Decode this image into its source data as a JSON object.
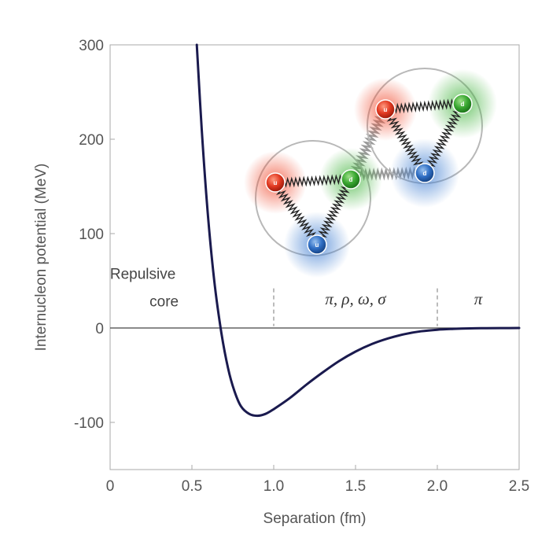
{
  "chart_data": {
    "type": "line",
    "xlabel": "Separation (fm)",
    "ylabel": "Internucleon potential (MeV)",
    "xlim": [
      0,
      2.5
    ],
    "ylim": [
      -150,
      300
    ],
    "x_ticks": [
      0,
      0.5,
      1.0,
      1.5,
      2.0,
      2.5
    ],
    "x_tick_labels": [
      "0",
      "0.5",
      "1.0",
      "1.5",
      "2.0",
      "2.5"
    ],
    "y_ticks": [
      -100,
      0,
      100,
      200,
      300
    ],
    "y_tick_labels": [
      "-100",
      "0",
      "100",
      "200",
      "300"
    ],
    "grid": false,
    "series": [
      {
        "color": "#1a1a4e",
        "x": [
          0.53,
          0.56,
          0.6,
          0.64,
          0.68,
          0.72,
          0.76,
          0.8,
          0.85,
          0.9,
          0.95,
          1.0,
          1.1,
          1.2,
          1.3,
          1.4,
          1.5,
          1.6,
          1.7,
          1.8,
          1.9,
          2.0,
          2.1,
          2.2,
          2.3,
          2.4,
          2.5
        ],
        "y": [
          300,
          210,
          115,
          45,
          -5,
          -42,
          -67,
          -83,
          -91,
          -93,
          -91,
          -86,
          -74,
          -60,
          -47,
          -35,
          -25,
          -17,
          -11,
          -6.5,
          -3.5,
          -1.8,
          -0.9,
          -0.4,
          -0.2,
          -0.1,
          0
        ]
      }
    ],
    "reference_lines": [
      {
        "axis": "y",
        "value": 0
      },
      {
        "axis": "x",
        "value": 1.0,
        "style": "dashed"
      },
      {
        "axis": "x",
        "value": 2.0,
        "style": "dashed"
      }
    ],
    "annotations": [
      {
        "text": "Repulsive",
        "x": 0.2,
        "y": 52
      },
      {
        "text": "core",
        "x": 0.33,
        "y": 23
      },
      {
        "text": "π, ρ, ω, σ",
        "x": 1.5,
        "y": 25
      },
      {
        "text": "π",
        "x": 2.25,
        "y": 25
      }
    ]
  },
  "illustration": {
    "quark_labels": [
      "u",
      "d",
      "u",
      "u",
      "d",
      "d"
    ],
    "colors": {
      "red": "#e8402a",
      "green": "#3fae3a",
      "blue": "#3a78c8"
    }
  }
}
